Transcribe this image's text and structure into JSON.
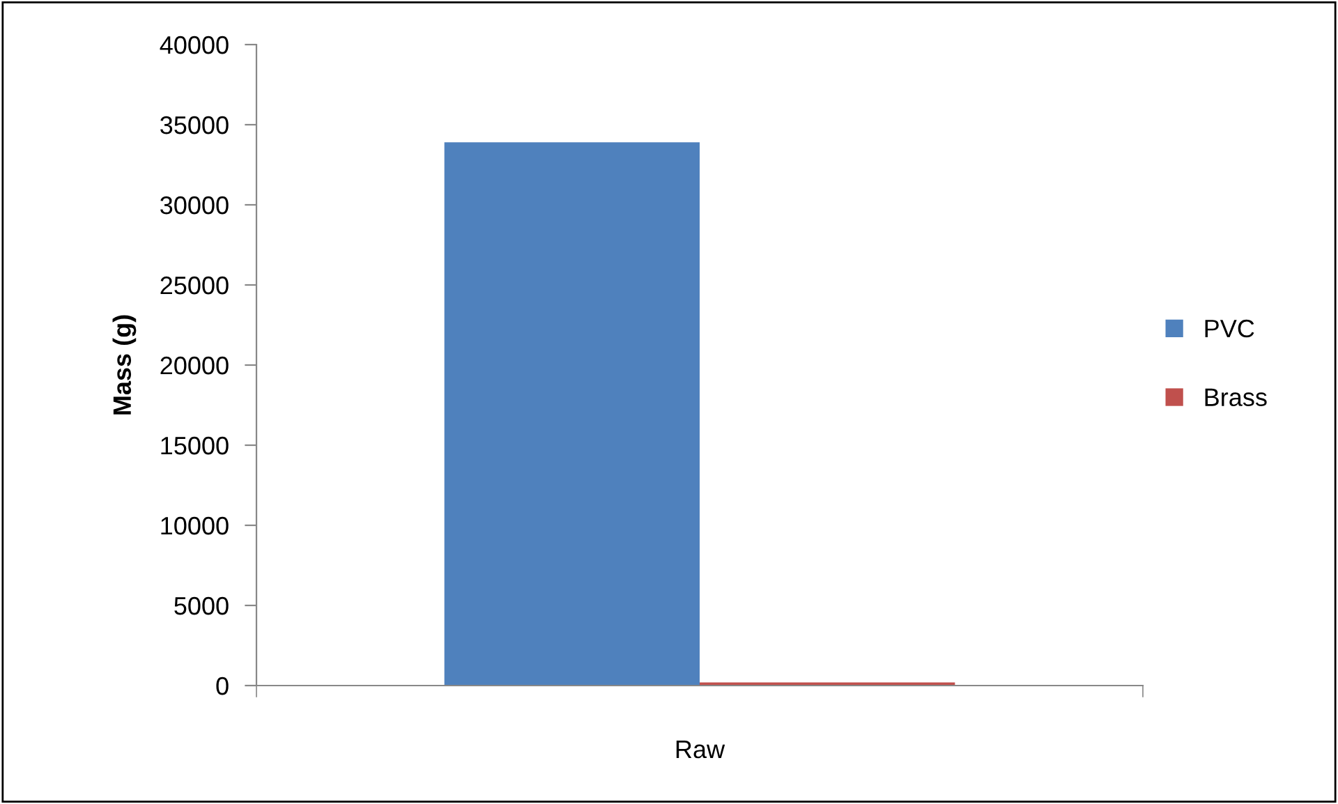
{
  "chart_data": {
    "type": "bar",
    "ylabel": "Mass (g)",
    "categories": [
      "Raw"
    ],
    "series": [
      {
        "name": "PVC",
        "color": "#4f81bd",
        "values": [
          33900
        ]
      },
      {
        "name": "Brass",
        "color": "#c0504d",
        "values": [
          200
        ]
      }
    ],
    "ylim": [
      0,
      40000
    ],
    "yticks": [
      0,
      5000,
      10000,
      15000,
      20000,
      25000,
      30000,
      35000,
      40000
    ],
    "grid": false,
    "legend": "right"
  }
}
